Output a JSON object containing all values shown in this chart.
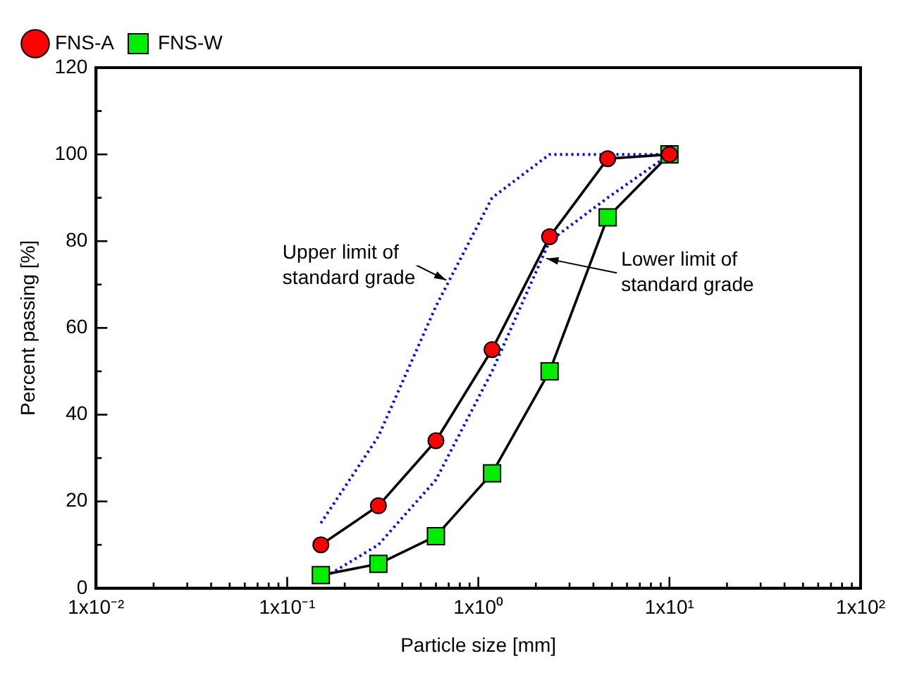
{
  "chart_data": {
    "type": "line",
    "xlabel": "Particle size [mm]",
    "ylabel": "Percent passing [%]",
    "log": "x",
    "legend": "top left",
    "grid": false,
    "xlim": [
      0.01,
      100
    ],
    "ylim": [
      0,
      120
    ],
    "xticks": [
      {
        "value": 0.01,
        "label": "1x10⁻²"
      },
      {
        "value": 0.02,
        "label": null
      },
      {
        "value": 0.03,
        "label": null
      },
      {
        "value": 0.04,
        "label": null
      },
      {
        "value": 0.05,
        "label": null
      },
      {
        "value": 0.06,
        "label": null
      },
      {
        "value": 0.07,
        "label": null
      },
      {
        "value": 0.08,
        "label": null
      },
      {
        "value": 0.09,
        "label": null
      },
      {
        "value": 0.1,
        "label": "1x10⁻¹"
      },
      {
        "value": 0.2,
        "label": null
      },
      {
        "value": 0.3,
        "label": null
      },
      {
        "value": 0.4,
        "label": null
      },
      {
        "value": 0.5,
        "label": null
      },
      {
        "value": 0.6,
        "label": null
      },
      {
        "value": 0.7,
        "label": null
      },
      {
        "value": 0.8,
        "label": null
      },
      {
        "value": 0.9,
        "label": null
      },
      {
        "value": 1,
        "label": "1x10⁰"
      },
      {
        "value": 2,
        "label": null
      },
      {
        "value": 3,
        "label": null
      },
      {
        "value": 4,
        "label": null
      },
      {
        "value": 5,
        "label": null
      },
      {
        "value": 6,
        "label": null
      },
      {
        "value": 7,
        "label": null
      },
      {
        "value": 8,
        "label": null
      },
      {
        "value": 9,
        "label": null
      },
      {
        "value": 10,
        "label": "1x10¹"
      },
      {
        "value": 20,
        "label": null
      },
      {
        "value": 30,
        "label": null
      },
      {
        "value": 40,
        "label": null
      },
      {
        "value": 50,
        "label": null
      },
      {
        "value": 60,
        "label": null
      },
      {
        "value": 70,
        "label": null
      },
      {
        "value": 80,
        "label": null
      },
      {
        "value": 90,
        "label": null
      },
      {
        "value": 100,
        "label": "1x10²"
      }
    ],
    "yticks": [
      0,
      {
        "value": 10,
        "label": null
      },
      20,
      {
        "value": 30,
        "label": null
      },
      40,
      {
        "value": 50,
        "label": null
      },
      60,
      {
        "value": 70,
        "label": null
      },
      80,
      {
        "value": 90,
        "label": null
      },
      100,
      {
        "value": 110,
        "label": null
      },
      120
    ],
    "series": [
      {
        "name": "FNS-A",
        "color": "#ff0000",
        "marker": "circle",
        "line_style": "solid",
        "x": [
          0.15,
          0.3,
          0.6,
          1.18,
          2.36,
          4.75,
          10
        ],
        "values": [
          10,
          19,
          34,
          55,
          81,
          99,
          100
        ]
      },
      {
        "name": "FNS-W",
        "color": "#00ee00",
        "marker": "square",
        "line_style": "solid",
        "x": [
          0.15,
          0.3,
          0.6,
          1.18,
          2.36,
          4.75,
          10
        ],
        "values": [
          3,
          5.6,
          12,
          26.5,
          50,
          85.5,
          100
        ]
      },
      {
        "color": "#0000ff",
        "marker": "none",
        "line_style": "dotted",
        "x": [
          0.15,
          0.3,
          0.6,
          1.18,
          2.36,
          4.75,
          10
        ],
        "values": [
          15,
          35,
          65,
          90,
          100,
          100,
          100
        ]
      },
      {
        "color": "#0000ff",
        "marker": "none",
        "line_style": "dotted",
        "x": [
          0.15,
          0.3,
          0.6,
          1.18,
          2.36,
          4.75,
          10
        ],
        "values": [
          2,
          10,
          25,
          50,
          80,
          90,
          100
        ]
      }
    ],
    "annotations": [
      {
        "text": "Upper limit of\nstandard grade",
        "x": 0.68,
        "y": 71
      },
      {
        "text": "Lower limit of\nstandard grade",
        "x": 2.27,
        "y": 76
      }
    ]
  }
}
